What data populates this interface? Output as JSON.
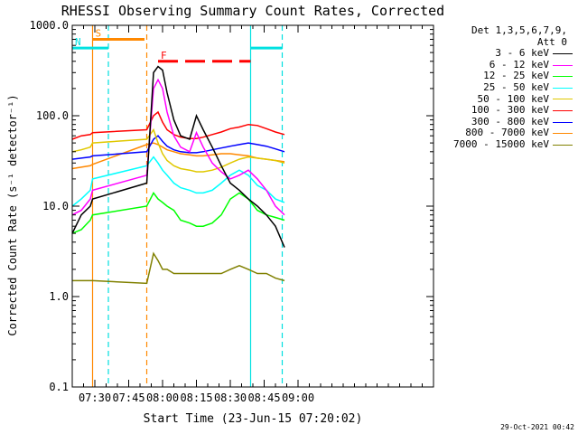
{
  "chart_data": {
    "type": "line",
    "title": "RHESSI Observing Summary Count Rates, Corrected",
    "xlabel": "Start Time (23-Jun-15 07:20:02)",
    "ylabel": "Corrected Count Rate (s⁻¹ detector⁻¹)",
    "yscale": "log",
    "ylim": [
      0.1,
      1000
    ],
    "xlim_min": [
      20,
      180
    ],
    "ytick_labels": [
      "0.1",
      "1.0",
      "10.0",
      "100.0",
      "1000.0"
    ],
    "xtick_labels": [
      "07:30",
      "07:45",
      "08:00",
      "08:15",
      "08:30",
      "08:45",
      "09:00"
    ],
    "xtick_min": [
      30,
      45,
      60,
      75,
      90,
      105,
      120
    ],
    "flag_lines": [
      {
        "t": 29,
        "color": "#ff8800",
        "style": "solid"
      },
      {
        "t": 36,
        "color": "#00e0e0",
        "style": "dashed"
      },
      {
        "t": 53,
        "color": "#ff8800",
        "style": "dashed"
      },
      {
        "t": 99,
        "color": "#00e0e0",
        "style": "solid"
      },
      {
        "t": 113,
        "color": "#00e0e0",
        "style": "dashed"
      }
    ],
    "flag_bars": [
      {
        "label": "S",
        "t0": 29,
        "t1": 52,
        "y": 700,
        "color": "#ff8800",
        "dashed": false
      },
      {
        "label": "N",
        "t0": 20,
        "t1": 36,
        "y": 560,
        "color": "#00e0e0",
        "dashed": false
      },
      {
        "label": "",
        "t0": 99,
        "t1": 113,
        "y": 560,
        "color": "#00e0e0",
        "dashed": false
      },
      {
        "label": "F",
        "t0": 58,
        "t1": 99,
        "y": 400,
        "color": "#ff0000",
        "dashed": true
      }
    ],
    "series": [
      {
        "name": "3 - 6 keV",
        "color": "#000000",
        "t": [
          20,
          24,
          28,
          29,
          53,
          56,
          58,
          60,
          62,
          65,
          68,
          72,
          75,
          78,
          82,
          86,
          90,
          94,
          98,
          102,
          106,
          110,
          114
        ],
        "v": [
          5,
          8,
          10,
          12,
          18,
          300,
          350,
          320,
          180,
          90,
          60,
          55,
          100,
          70,
          45,
          28,
          18,
          15,
          12,
          10,
          8,
          6,
          3.5
        ]
      },
      {
        "name": "6 - 12 keV",
        "color": "#ff00ff",
        "t": [
          20,
          24,
          28,
          29,
          53,
          56,
          58,
          60,
          62,
          65,
          68,
          72,
          75,
          78,
          82,
          86,
          90,
          94,
          98,
          102,
          106,
          110,
          114
        ],
        "v": [
          8,
          9,
          12,
          15,
          22,
          200,
          250,
          200,
          110,
          60,
          45,
          40,
          65,
          45,
          30,
          24,
          20,
          22,
          25,
          20,
          15,
          10,
          8
        ]
      },
      {
        "name": "12 - 25 keV",
        "color": "#00ff00",
        "t": [
          20,
          24,
          28,
          29,
          53,
          56,
          58,
          60,
          62,
          65,
          68,
          72,
          75,
          78,
          82,
          86,
          90,
          94,
          98,
          102,
          106,
          110,
          114
        ],
        "v": [
          5,
          5.5,
          7,
          8,
          10,
          14,
          12,
          11,
          10,
          9,
          7,
          6.5,
          6,
          6,
          6.5,
          8,
          12,
          14,
          12,
          9,
          8,
          7.5,
          7
        ]
      },
      {
        "name": "25 - 50 keV",
        "color": "#00ffff",
        "t": [
          20,
          24,
          28,
          29,
          53,
          56,
          58,
          60,
          62,
          65,
          68,
          72,
          75,
          78,
          82,
          86,
          90,
          94,
          98,
          102,
          106,
          110,
          114
        ],
        "v": [
          10,
          12,
          15,
          20,
          28,
          35,
          30,
          25,
          22,
          18,
          16,
          15,
          14,
          14,
          15,
          18,
          22,
          25,
          22,
          17,
          15,
          12,
          11
        ]
      },
      {
        "name": "50 - 100 keV",
        "color": "#e0c800",
        "t": [
          20,
          24,
          28,
          29,
          53,
          56,
          58,
          60,
          62,
          65,
          68,
          72,
          75,
          78,
          82,
          86,
          90,
          94,
          98,
          102,
          106,
          110,
          114
        ],
        "v": [
          40,
          42,
          45,
          50,
          55,
          70,
          50,
          38,
          32,
          28,
          26,
          25,
          24,
          24,
          25,
          27,
          30,
          33,
          35,
          34,
          33,
          32,
          30
        ]
      },
      {
        "name": "100 - 300 keV",
        "color": "#ff0000",
        "t": [
          20,
          24,
          28,
          29,
          53,
          56,
          58,
          60,
          62,
          65,
          68,
          72,
          75,
          78,
          82,
          86,
          90,
          94,
          98,
          102,
          106,
          110,
          114
        ],
        "v": [
          55,
          60,
          62,
          65,
          70,
          100,
          110,
          85,
          70,
          62,
          58,
          56,
          56,
          58,
          62,
          66,
          72,
          75,
          80,
          78,
          72,
          66,
          62
        ]
      },
      {
        "name": "300 - 800 keV",
        "color": "#0000ff",
        "t": [
          20,
          24,
          28,
          29,
          53,
          56,
          58,
          60,
          62,
          65,
          68,
          72,
          75,
          78,
          82,
          86,
          90,
          94,
          98,
          102,
          106,
          110,
          114
        ],
        "v": [
          33,
          34,
          35,
          36,
          40,
          55,
          60,
          52,
          46,
          42,
          40,
          39,
          39,
          40,
          42,
          44,
          46,
          48,
          50,
          48,
          46,
          43,
          40
        ]
      },
      {
        "name": "800 - 7000 keV",
        "color": "#ff8800",
        "t": [
          20,
          24,
          28,
          29,
          53,
          56,
          58,
          60,
          62,
          65,
          68,
          72,
          75,
          78,
          82,
          86,
          90,
          94,
          98,
          102,
          106,
          110,
          114
        ],
        "v": [
          26,
          27,
          28,
          29,
          48,
          50,
          48,
          45,
          42,
          40,
          38,
          37,
          36,
          36,
          37,
          38,
          38,
          37,
          36,
          34,
          33,
          32,
          31
        ]
      },
      {
        "name": "7000 - 15000 keV",
        "color": "#808000",
        "t": [
          20,
          24,
          28,
          29,
          53,
          56,
          58,
          60,
          62,
          65,
          68,
          72,
          75,
          78,
          82,
          86,
          90,
          94,
          98,
          102,
          106,
          110,
          114
        ],
        "v": [
          1.5,
          1.5,
          1.5,
          1.5,
          1.4,
          3,
          2.5,
          2,
          2,
          1.8,
          1.8,
          1.8,
          1.8,
          1.8,
          1.8,
          1.8,
          2,
          2.2,
          2,
          1.8,
          1.8,
          1.6,
          1.5
        ]
      }
    ]
  },
  "legend": {
    "header_line1": "Det 1,3,5,6,7,9,",
    "header_line2": "Att 0"
  },
  "stamp": "29-Oct-2021 00:42"
}
